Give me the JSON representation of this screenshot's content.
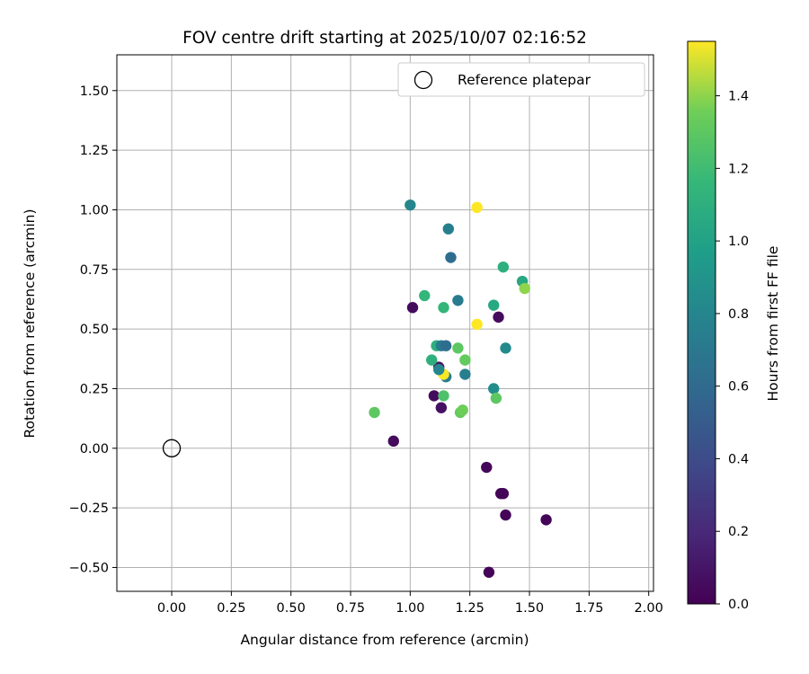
{
  "chart_data": {
    "type": "scatter",
    "title": "FOV centre drift starting at 2025/10/07 02:16:52",
    "xlabel": "Angular distance from reference (arcmin)",
    "ylabel": "Rotation from reference (arcmin)",
    "xlim": [
      -0.23,
      2.02
    ],
    "ylim": [
      -0.6,
      1.65
    ],
    "xticks": [
      0.0,
      0.25,
      0.5,
      0.75,
      1.0,
      1.25,
      1.5,
      1.75,
      2.0
    ],
    "xtick_labels": [
      "0.00",
      "0.25",
      "0.50",
      "0.75",
      "1.00",
      "1.25",
      "1.50",
      "1.75",
      "2.00"
    ],
    "yticks": [
      -0.5,
      -0.25,
      0.0,
      0.25,
      0.5,
      0.75,
      1.0,
      1.25,
      1.5
    ],
    "ytick_labels": [
      "−0.50",
      "−0.25",
      "0.00",
      "0.25",
      "0.50",
      "0.75",
      "1.00",
      "1.25",
      "1.50"
    ],
    "grid": true,
    "legend": {
      "position": "top-right",
      "entries": [
        {
          "label": "Reference platepar",
          "marker": "open-circle"
        }
      ]
    },
    "reference_point": {
      "x": 0.0,
      "y": 0.0
    },
    "colorbar": {
      "label": "Hours from first FF file",
      "range": [
        0.0,
        1.55
      ],
      "ticks": [
        0.0,
        0.2,
        0.4,
        0.6,
        0.8,
        1.0,
        1.2,
        1.4
      ],
      "tick_labels": [
        "0.0",
        "0.2",
        "0.4",
        "0.6",
        "0.8",
        "1.0",
        "1.2",
        "1.4"
      ],
      "colormap": "viridis"
    },
    "points": [
      {
        "x": 1.33,
        "y": -0.52,
        "c": 0.02
      },
      {
        "x": 1.57,
        "y": -0.3,
        "c": 0.02
      },
      {
        "x": 1.4,
        "y": -0.28,
        "c": 0.02
      },
      {
        "x": 1.38,
        "y": -0.19,
        "c": 0.02
      },
      {
        "x": 1.39,
        "y": -0.19,
        "c": 0.02
      },
      {
        "x": 1.32,
        "y": -0.08,
        "c": 0.03
      },
      {
        "x": 0.93,
        "y": 0.03,
        "c": 0.05
      },
      {
        "x": 0.85,
        "y": 0.15,
        "c": 1.3
      },
      {
        "x": 1.13,
        "y": 0.17,
        "c": 0.08
      },
      {
        "x": 1.1,
        "y": 0.22,
        "c": 0.05
      },
      {
        "x": 1.14,
        "y": 0.22,
        "c": 1.25
      },
      {
        "x": 1.21,
        "y": 0.15,
        "c": 1.32
      },
      {
        "x": 1.22,
        "y": 0.16,
        "c": 1.35
      },
      {
        "x": 1.35,
        "y": 0.25,
        "c": 0.85
      },
      {
        "x": 1.36,
        "y": 0.21,
        "c": 1.3
      },
      {
        "x": 1.23,
        "y": 0.31,
        "c": 0.75
      },
      {
        "x": 1.15,
        "y": 0.3,
        "c": 0.72
      },
      {
        "x": 1.14,
        "y": 0.31,
        "c": 1.55
      },
      {
        "x": 1.12,
        "y": 0.34,
        "c": 0.1
      },
      {
        "x": 1.12,
        "y": 0.33,
        "c": 0.8
      },
      {
        "x": 1.09,
        "y": 0.37,
        "c": 1.1
      },
      {
        "x": 1.23,
        "y": 0.37,
        "c": 1.32
      },
      {
        "x": 1.11,
        "y": 0.43,
        "c": 1.1
      },
      {
        "x": 1.13,
        "y": 0.43,
        "c": 0.72
      },
      {
        "x": 1.15,
        "y": 0.43,
        "c": 0.62
      },
      {
        "x": 1.2,
        "y": 0.42,
        "c": 1.3
      },
      {
        "x": 1.4,
        "y": 0.42,
        "c": 0.82
      },
      {
        "x": 1.01,
        "y": 0.59,
        "c": 0.05
      },
      {
        "x": 1.14,
        "y": 0.59,
        "c": 1.15
      },
      {
        "x": 1.06,
        "y": 0.64,
        "c": 1.15
      },
      {
        "x": 1.2,
        "y": 0.62,
        "c": 0.72
      },
      {
        "x": 1.28,
        "y": 0.52,
        "c": 1.55
      },
      {
        "x": 1.35,
        "y": 0.6,
        "c": 1.05
      },
      {
        "x": 1.37,
        "y": 0.55,
        "c": 0.05
      },
      {
        "x": 1.47,
        "y": 0.7,
        "c": 1.05
      },
      {
        "x": 1.48,
        "y": 0.67,
        "c": 1.4
      },
      {
        "x": 1.39,
        "y": 0.76,
        "c": 1.1
      },
      {
        "x": 1.17,
        "y": 0.8,
        "c": 0.62
      },
      {
        "x": 1.16,
        "y": 0.92,
        "c": 0.75
      },
      {
        "x": 1.0,
        "y": 1.02,
        "c": 0.8
      },
      {
        "x": 1.28,
        "y": 1.01,
        "c": 1.55
      }
    ]
  }
}
